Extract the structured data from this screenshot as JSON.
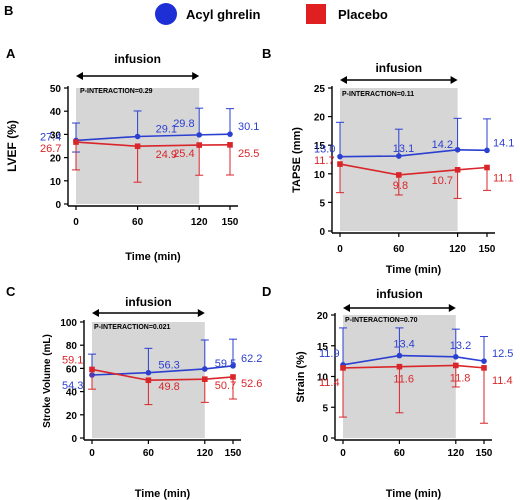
{
  "figure": {
    "panel_label": "B",
    "legend": [
      {
        "name": "Acyl ghrelin",
        "color": "#1f2fd6",
        "marker": "circle"
      },
      {
        "name": "Placebo",
        "color": "#e02020",
        "marker": "square"
      }
    ],
    "colors": {
      "ghrelin": "#2b3fd0",
      "placebo": "#d9262a",
      "shade": "#d6d6d6"
    }
  },
  "chart_data": [
    {
      "type": "line",
      "panel": "A",
      "ylabel": "LVEF (%)",
      "xlabel": "Time (min)",
      "x": [
        0,
        60,
        120,
        150
      ],
      "xlim": [
        0,
        150
      ],
      "ylim": [
        0,
        50
      ],
      "yticks": [
        0,
        10,
        20,
        30,
        40,
        50
      ],
      "infusion": [
        0,
        120
      ],
      "infusion_label": "infusion",
      "annotation": "P-INTERACTION=0.29",
      "series": [
        {
          "name": "Acyl ghrelin",
          "values": [
            27.4,
            29.1,
            29.8,
            30.1
          ],
          "err_up": [
            7.5,
            11,
            11.5,
            11
          ],
          "err_dn": [
            5,
            0,
            0,
            0
          ],
          "labels": [
            "27.4",
            "29.1",
            "29.8",
            "30.1"
          ]
        },
        {
          "name": "Placebo",
          "values": [
            26.7,
            24.9,
            25.4,
            25.5
          ],
          "err_up": [
            0,
            0,
            0,
            0
          ],
          "err_dn": [
            12,
            15.5,
            13,
            13
          ],
          "labels": [
            "26.7",
            "24.9",
            "25.4",
            "25.5"
          ]
        }
      ]
    },
    {
      "type": "line",
      "panel": "B",
      "ylabel": "TAPSE (mm)",
      "xlabel": "Time (min)",
      "x": [
        0,
        60,
        120,
        150
      ],
      "xlim": [
        0,
        150
      ],
      "ylim": [
        0,
        25
      ],
      "yticks": [
        0,
        5,
        10,
        15,
        20,
        25
      ],
      "infusion": [
        0,
        120
      ],
      "infusion_label": "infusion",
      "annotation": "P-INTERACTION=0.11",
      "series": [
        {
          "name": "Acyl ghrelin",
          "values": [
            13.0,
            13.1,
            14.2,
            14.1
          ],
          "err_up": [
            6,
            4.7,
            5.5,
            5.5
          ],
          "err_dn": [
            0,
            0,
            0,
            0
          ],
          "labels": [
            "13.0",
            "13.1",
            "14.2",
            "14.1"
          ]
        },
        {
          "name": "Placebo",
          "values": [
            11.7,
            9.8,
            10.7,
            11.1
          ],
          "err_up": [
            0,
            0,
            0,
            0
          ],
          "err_dn": [
            5,
            3.5,
            5,
            4
          ],
          "labels": [
            "11.7",
            "9.8",
            "10.7",
            "11.1"
          ]
        }
      ]
    },
    {
      "type": "line",
      "panel": "C",
      "ylabel": "Stroke Volume (mL)",
      "xlabel": "Time (min)",
      "x": [
        0,
        60,
        120,
        150
      ],
      "xlim": [
        0,
        150
      ],
      "ylim": [
        0,
        100
      ],
      "yticks": [
        0,
        20,
        40,
        60,
        80,
        100
      ],
      "infusion": [
        0,
        120
      ],
      "infusion_label": "infusion",
      "annotation": "P-INTERACTION=0.021",
      "series": [
        {
          "name": "Acyl ghrelin",
          "values": [
            54.3,
            56.3,
            59.5,
            62.2
          ],
          "err_up": [
            18,
            21,
            25,
            23
          ],
          "err_dn": [
            0,
            0,
            0,
            0
          ],
          "labels": [
            "54.3",
            "56.3",
            "59.5",
            "62.2"
          ]
        },
        {
          "name": "Placebo",
          "values": [
            59.1,
            49.8,
            50.7,
            52.6
          ],
          "err_up": [
            0,
            0,
            0,
            0
          ],
          "err_dn": [
            17,
            21,
            20,
            19
          ],
          "labels": [
            "59.1",
            "49.8",
            "50.7",
            "52.6"
          ]
        }
      ]
    },
    {
      "type": "line",
      "panel": "D",
      "ylabel": "Strain (%)",
      "xlabel": "Time (min)",
      "x": [
        0,
        60,
        120,
        150
      ],
      "xlim": [
        0,
        150
      ],
      "ylim": [
        0,
        20
      ],
      "yticks": [
        0,
        5,
        10,
        15,
        20
      ],
      "infusion": [
        0,
        120
      ],
      "infusion_label": "infusion",
      "annotation": "P-INTERACTION=0.70",
      "series": [
        {
          "name": "Acyl ghrelin",
          "values": [
            11.9,
            13.4,
            13.2,
            12.5
          ],
          "err_up": [
            6,
            4.5,
            4.5,
            4
          ],
          "err_dn": [
            0,
            0,
            0,
            0
          ],
          "labels": [
            "11.9",
            "13.4",
            "13.2",
            "12.5"
          ]
        },
        {
          "name": "Placebo",
          "values": [
            11.4,
            11.6,
            11.8,
            11.4
          ],
          "err_up": [
            0,
            0,
            0,
            0
          ],
          "err_dn": [
            8,
            7.5,
            3.5,
            9
          ],
          "labels": [
            "11.4",
            "11.6",
            "11.8",
            "11.4"
          ]
        }
      ]
    }
  ]
}
